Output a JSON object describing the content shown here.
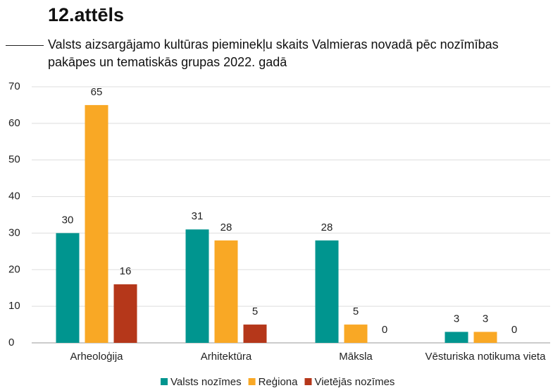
{
  "chart_data": {
    "type": "bar",
    "title": "12.attēls",
    "subtitle": "Valsts aizsargājamo kultūras pieminekļu skaits Valmieras novadā pēc nozīmības pakāpes un tematiskās grupas 2022. gadā",
    "categories": [
      "Arheoloģija",
      "Arhitektūra",
      "Māksla",
      "Vēsturiska notikuma vieta"
    ],
    "series": [
      {
        "name": "Valsts nozīmes",
        "color": "#00958f",
        "values": [
          30,
          31,
          28,
          3
        ]
      },
      {
        "name": "Reģiona",
        "color": "#f9a825",
        "values": [
          65,
          28,
          5,
          3
        ]
      },
      {
        "name": "Vietējās nozīmes",
        "color": "#b5371a",
        "values": [
          16,
          5,
          0,
          0
        ]
      }
    ],
    "ylim": [
      0,
      70
    ],
    "yticks": [
      0,
      10,
      20,
      30,
      40,
      50,
      60,
      70
    ],
    "grid": true,
    "legend": "bottom"
  }
}
